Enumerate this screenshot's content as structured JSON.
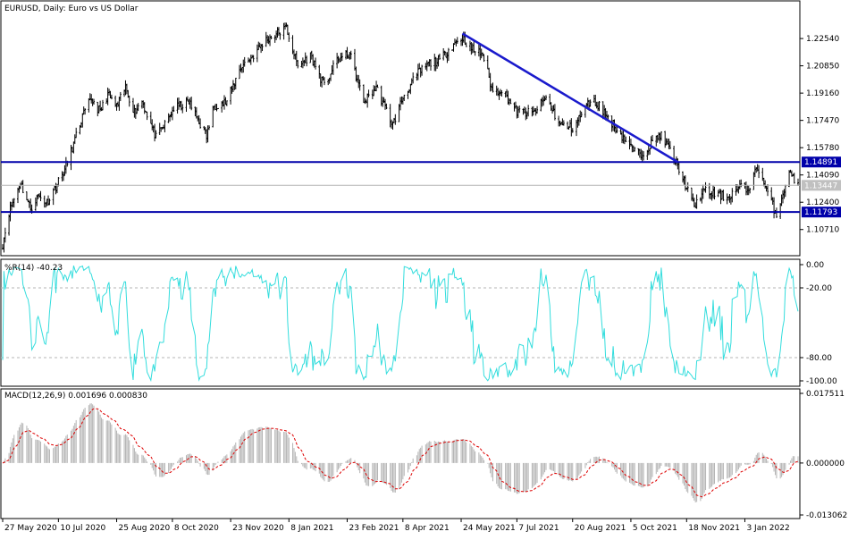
{
  "header": {
    "symbol_label": "EURUSD, Daily:  Euro vs US Dollar",
    "wpr_label": "%R(14) -40.23",
    "macd_label": "MACD(12,26,9) 0.001696 0.000830"
  },
  "colors": {
    "candle": "#000000",
    "hline": "#0000aa",
    "trendline": "#1a1acc",
    "current_line": "#b4b4b4",
    "wpr": "#33dddd",
    "macd_hist": "#b4b4b4",
    "macd_signal": "#dd0000",
    "grid_dash": "#b4b4b4"
  },
  "chart_data": [
    {
      "type": "candlestick",
      "title": "EURUSD, Daily:  Euro vs US Dollar",
      "ylim": [
        1.092,
        1.2465
      ],
      "yticks": [
        "1.22540",
        "1.20850",
        "1.19160",
        "1.17470",
        "1.15780",
        "1.14090",
        "1.12400",
        "1.10710"
      ],
      "horizontal_lines": [
        {
          "label": "1.14891",
          "value": 1.14891
        },
        {
          "label": "1.11793",
          "value": 1.11793
        }
      ],
      "current_price": {
        "label": "1.13447",
        "value": 1.13447
      },
      "trendline": {
        "from": {
          "date": "2021-05-25",
          "value": 1.2285
        },
        "to": {
          "date": "2021-11-11",
          "value": 1.1489
        }
      },
      "anchors": [
        [
          "2020-05-27",
          1.098
        ],
        [
          "2020-06-01",
          1.118
        ],
        [
          "2020-06-10",
          1.136
        ],
        [
          "2020-06-18",
          1.12
        ],
        [
          "2020-06-24",
          1.128
        ],
        [
          "2020-07-01",
          1.124
        ],
        [
          "2020-07-08",
          1.134
        ],
        [
          "2020-07-15",
          1.144
        ],
        [
          "2020-07-22",
          1.16
        ],
        [
          "2020-07-29",
          1.177
        ],
        [
          "2020-08-05",
          1.188
        ],
        [
          "2020-08-12",
          1.18
        ],
        [
          "2020-08-18",
          1.191
        ],
        [
          "2020-08-25",
          1.183
        ],
        [
          "2020-09-01",
          1.195
        ],
        [
          "2020-09-08",
          1.18
        ],
        [
          "2020-09-14",
          1.187
        ],
        [
          "2020-09-25",
          1.164
        ],
        [
          "2020-10-02",
          1.172
        ],
        [
          "2020-10-09",
          1.182
        ],
        [
          "2020-10-21",
          1.186
        ],
        [
          "2020-11-04",
          1.165
        ],
        [
          "2020-11-10",
          1.184
        ],
        [
          "2020-11-20",
          1.186
        ],
        [
          "2020-12-01",
          1.208
        ],
        [
          "2020-12-10",
          1.214
        ],
        [
          "2020-12-20",
          1.224
        ],
        [
          "2021-01-06",
          1.232
        ],
        [
          "2021-01-15",
          1.208
        ],
        [
          "2021-01-25",
          1.215
        ],
        [
          "2021-02-05",
          1.196
        ],
        [
          "2021-02-15",
          1.212
        ],
        [
          "2021-02-25",
          1.216
        ],
        [
          "2021-03-08",
          1.186
        ],
        [
          "2021-03-18",
          1.195
        ],
        [
          "2021-03-31",
          1.172
        ],
        [
          "2021-04-08",
          1.189
        ],
        [
          "2021-04-20",
          1.204
        ],
        [
          "2021-04-29",
          1.21
        ],
        [
          "2021-05-07",
          1.212
        ],
        [
          "2021-05-18",
          1.222
        ],
        [
          "2021-05-25",
          1.226
        ],
        [
          "2021-06-01",
          1.219
        ],
        [
          "2021-06-10",
          1.216
        ],
        [
          "2021-06-18",
          1.192
        ],
        [
          "2021-06-25",
          1.194
        ],
        [
          "2021-07-07",
          1.18
        ],
        [
          "2021-07-20",
          1.179
        ],
        [
          "2021-07-30",
          1.189
        ],
        [
          "2021-08-10",
          1.172
        ],
        [
          "2021-08-20",
          1.17
        ],
        [
          "2021-09-03",
          1.187
        ],
        [
          "2021-09-10",
          1.184
        ],
        [
          "2021-09-22",
          1.171
        ],
        [
          "2021-10-05",
          1.158
        ],
        [
          "2021-10-12",
          1.153
        ],
        [
          "2021-10-28",
          1.166
        ],
        [
          "2021-11-05",
          1.156
        ],
        [
          "2021-11-12",
          1.145
        ],
        [
          "2021-11-24",
          1.121
        ],
        [
          "2021-12-01",
          1.131
        ],
        [
          "2021-12-10",
          1.129
        ],
        [
          "2021-12-20",
          1.127
        ],
        [
          "2021-12-31",
          1.134
        ],
        [
          "2022-01-05",
          1.131
        ],
        [
          "2022-01-13",
          1.146
        ],
        [
          "2022-01-19",
          1.134
        ],
        [
          "2022-01-28",
          1.116
        ],
        [
          "2022-02-02",
          1.13
        ],
        [
          "2022-02-08",
          1.143
        ],
        [
          "2022-02-14",
          1.134
        ]
      ]
    },
    {
      "type": "line",
      "title": "%R(14) -40.23",
      "ylim": [
        -100,
        0
      ],
      "yticks": [
        "0.00",
        "-20.00",
        "-80.00",
        "-100.00"
      ],
      "levels": [
        -20,
        -80
      ],
      "current": -40.23
    },
    {
      "type": "bar",
      "title": "MACD(12,26,9) 0.001696 0.000830",
      "ylim": [
        -0.013062,
        0.017511
      ],
      "yticks": [
        "0.017511",
        "0.000000",
        "-0.013062"
      ],
      "series": [
        {
          "name": "MACD",
          "current": 0.001696
        },
        {
          "name": "Signal",
          "current": 0.00083
        }
      ]
    }
  ],
  "x_axis": {
    "start_date": "2020-05-27",
    "end_date": "2022-02-14",
    "ticks": [
      {
        "label": "27 May 2020",
        "date": "2020-05-27"
      },
      {
        "label": "10 Jul 2020",
        "date": "2020-07-10"
      },
      {
        "label": "25 Aug 2020",
        "date": "2020-08-25"
      },
      {
        "label": "8 Oct 2020",
        "date": "2020-10-08"
      },
      {
        "label": "23 Nov 2020",
        "date": "2020-11-23"
      },
      {
        "label": "8 Jan 2021",
        "date": "2021-01-08"
      },
      {
        "label": "23 Feb 2021",
        "date": "2021-02-23"
      },
      {
        "label": "8 Apr 2021",
        "date": "2021-04-08"
      },
      {
        "label": "24 May 2021",
        "date": "2021-05-24"
      },
      {
        "label": "7 Jul 2021",
        "date": "2021-07-07"
      },
      {
        "label": "20 Aug 2021",
        "date": "2021-08-20"
      },
      {
        "label": "5 Oct 2021",
        "date": "2021-10-05"
      },
      {
        "label": "18 Nov 2021",
        "date": "2021-11-18"
      },
      {
        "label": "3 Jan 2022",
        "date": "2022-01-03"
      }
    ]
  }
}
